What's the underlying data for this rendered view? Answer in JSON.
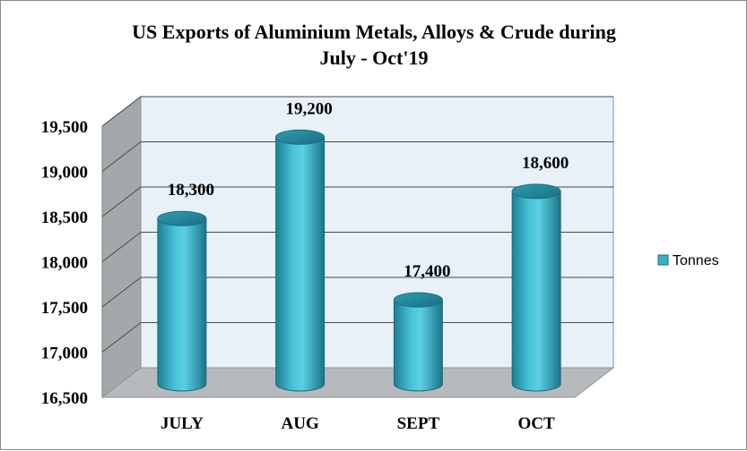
{
  "chart_data": {
    "type": "bar",
    "title_lines": [
      "US Exports of Aluminium Metals, Alloys & Crude during",
      "July - Oct'19"
    ],
    "categories": [
      "JULY",
      "AUG",
      "SEPT",
      "OCT"
    ],
    "series": [
      {
        "name": "Tonnes",
        "values": [
          18300,
          19200,
          17400,
          18600
        ],
        "color": "#3aaec6"
      }
    ],
    "data_labels": [
      "18,300",
      "19,200",
      "17,400",
      "18,600"
    ],
    "ylim": [
      16500,
      19500
    ],
    "y_ticks": [
      16500,
      17000,
      17500,
      18000,
      18500,
      19000,
      19500
    ],
    "y_tick_labels": [
      "16,500",
      "17,000",
      "17,500",
      "18,000",
      "18,500",
      "19,000",
      "19,500"
    ],
    "grid": true,
    "legend_position": "right",
    "style": "3d-cylinder"
  }
}
